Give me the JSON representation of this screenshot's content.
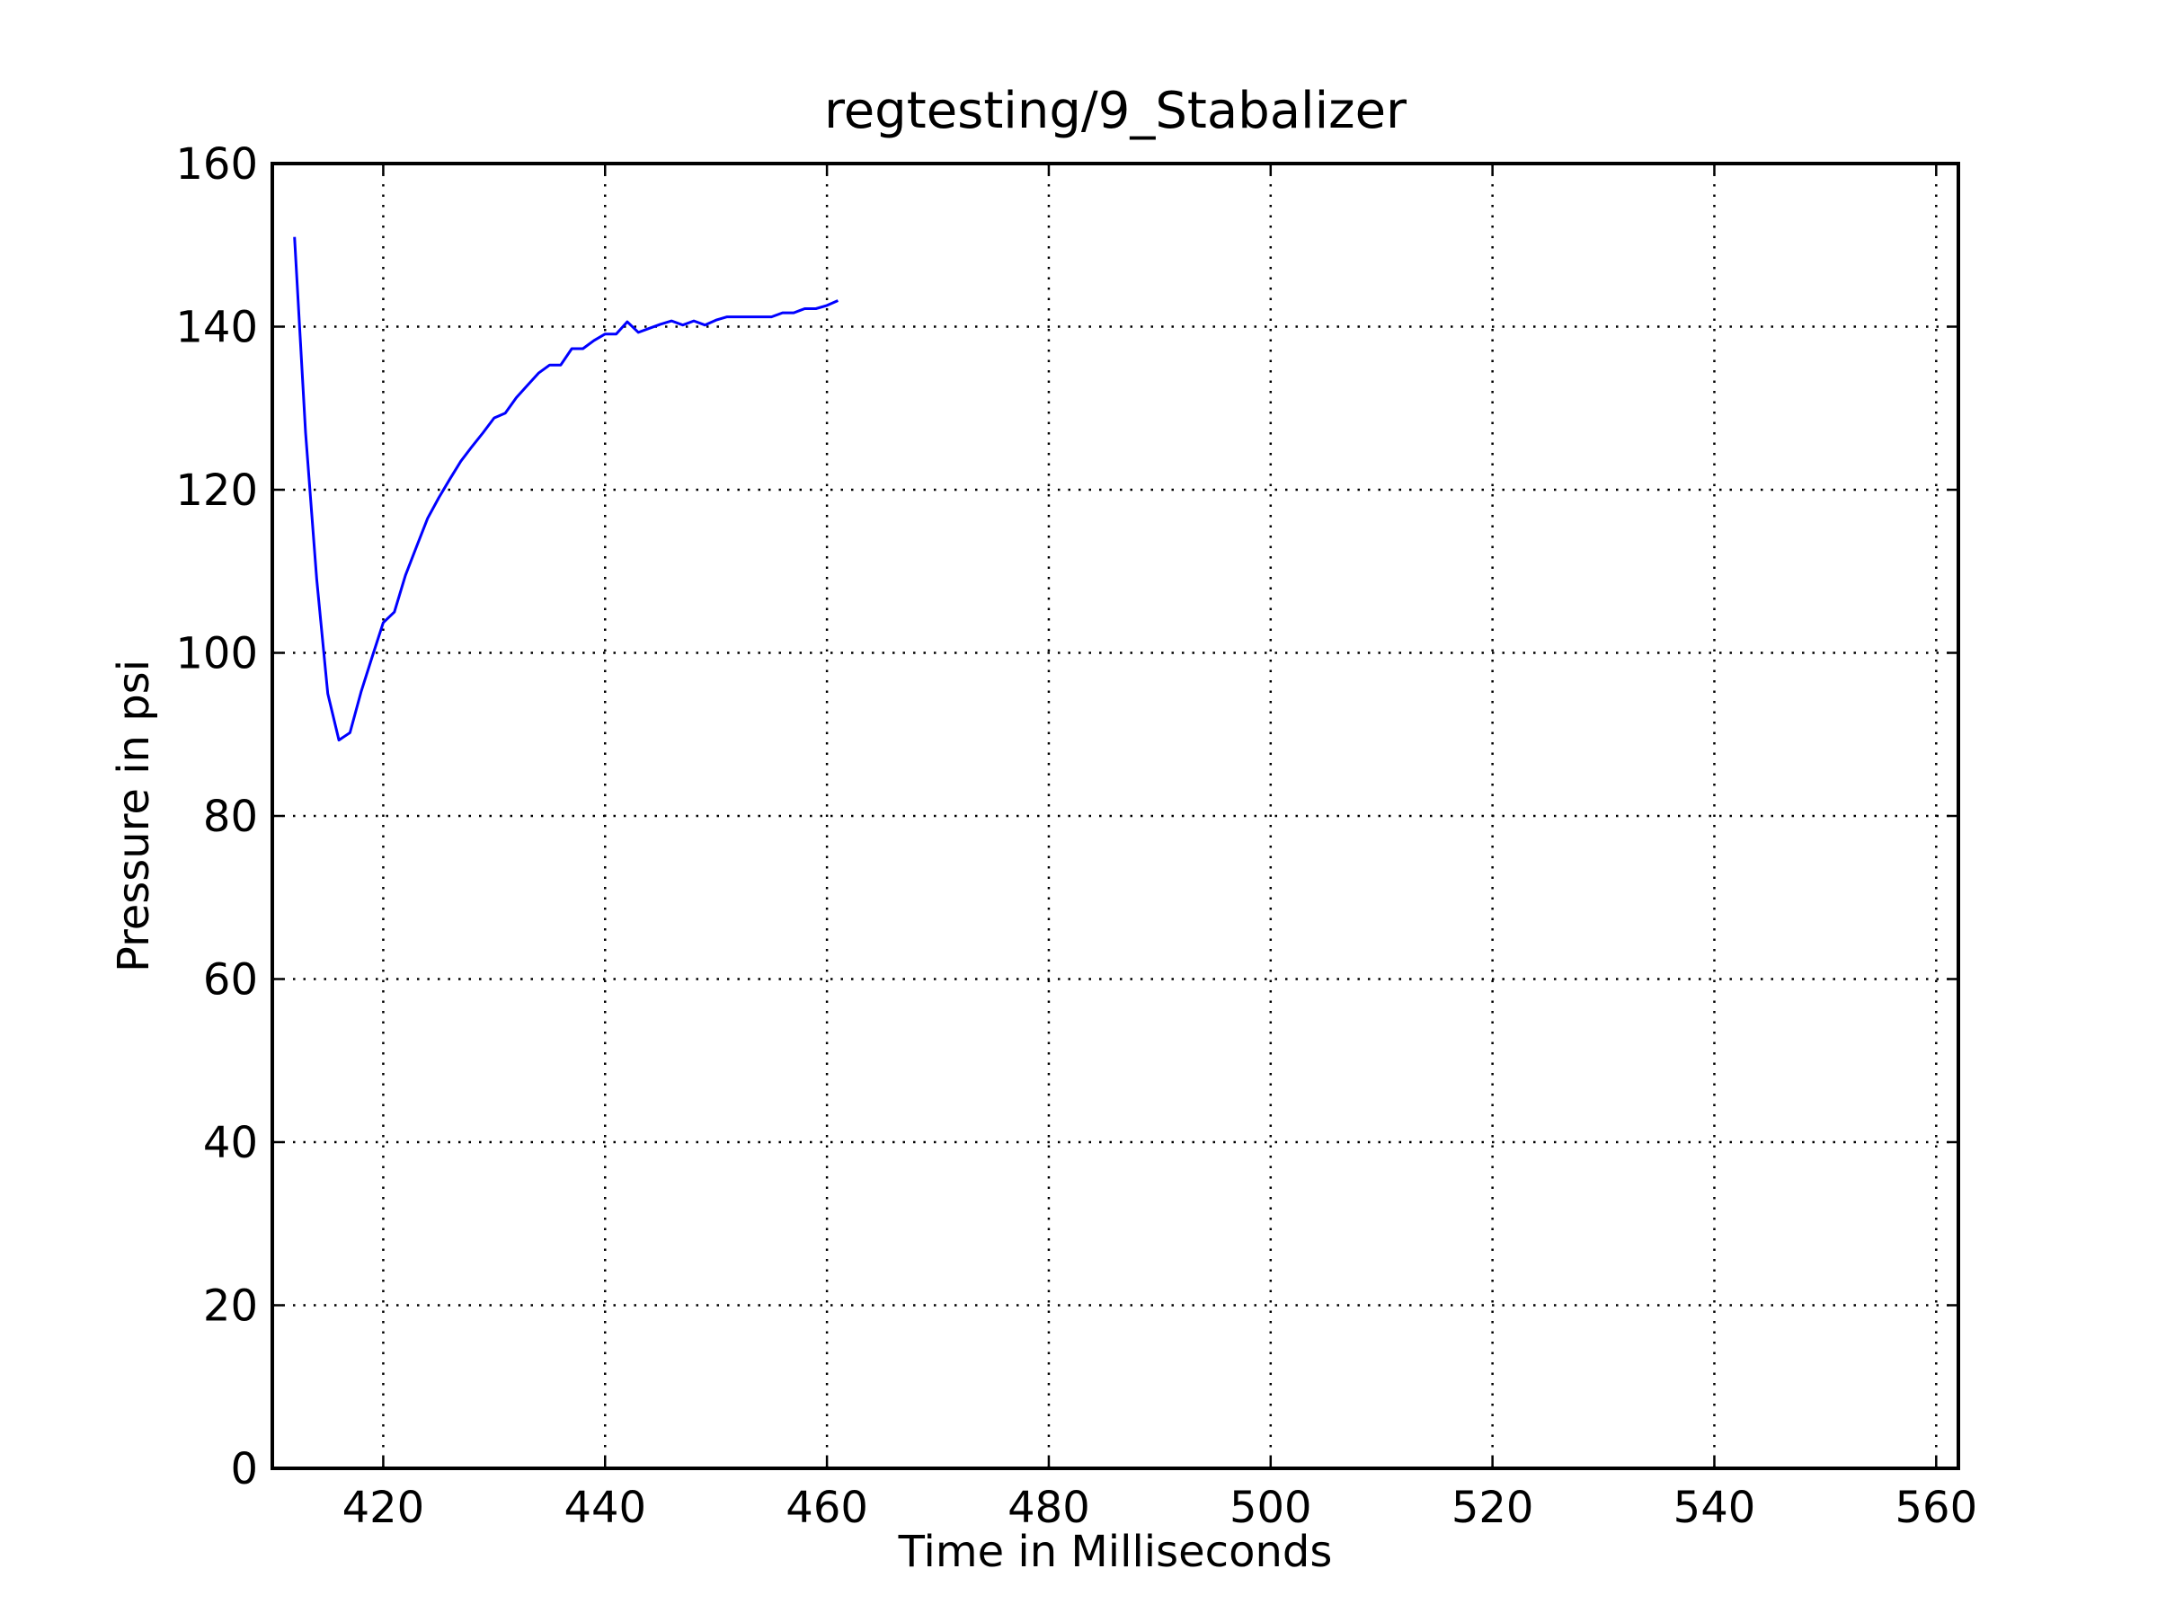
{
  "chart_data": {
    "type": "line",
    "title": "regtesting/9_Stabalizer",
    "xlabel": "Time in Milliseconds",
    "ylabel": "Pressure in psi",
    "xlim": [
      410,
      562
    ],
    "ylim": [
      0,
      160
    ],
    "xticks": [
      420,
      440,
      460,
      480,
      500,
      520,
      540,
      560
    ],
    "yticks": [
      0,
      20,
      40,
      60,
      80,
      100,
      120,
      140,
      160
    ],
    "xtick_labels": [
      "420",
      "440",
      "460",
      "480",
      "500",
      "520",
      "540",
      "560"
    ],
    "ytick_labels": [
      "0",
      "20",
      "40",
      "60",
      "80",
      "100",
      "120",
      "140",
      "160"
    ],
    "grid": true,
    "legend": "none",
    "colors": {
      "line": "#0000ff",
      "grid": "#000000",
      "frame": "#000000"
    },
    "series": [
      {
        "x": [
          412,
          413,
          414,
          415,
          416,
          417,
          418,
          419,
          420,
          421,
          422,
          423,
          424,
          425,
          426,
          427,
          428,
          429,
          430,
          431,
          432,
          433,
          434,
          435,
          436,
          437,
          438,
          439,
          440,
          441,
          442,
          443,
          444,
          445,
          446,
          447,
          448,
          449,
          450,
          451,
          452,
          453,
          454,
          455,
          456,
          457,
          458,
          459,
          460,
          461
        ],
        "y": [
          151,
          127,
          109,
          95,
          89.3,
          90.2,
          95.2,
          99.5,
          103.7,
          105,
          109.5,
          113,
          116.5,
          119,
          121.3,
          123.5,
          125.3,
          127,
          128.8,
          129.4,
          131.3,
          132.8,
          134.3,
          135.3,
          135.3,
          137.3,
          137.3,
          138.3,
          139.1,
          139.1,
          140.6,
          139.3,
          139.8,
          140.3,
          140.7,
          140.2,
          140.7,
          140.2,
          140.8,
          141.2,
          141.2,
          141.2,
          141.2,
          141.2,
          141.7,
          141.7,
          142.2,
          142.2,
          142.6,
          143.2
        ]
      }
    ]
  }
}
